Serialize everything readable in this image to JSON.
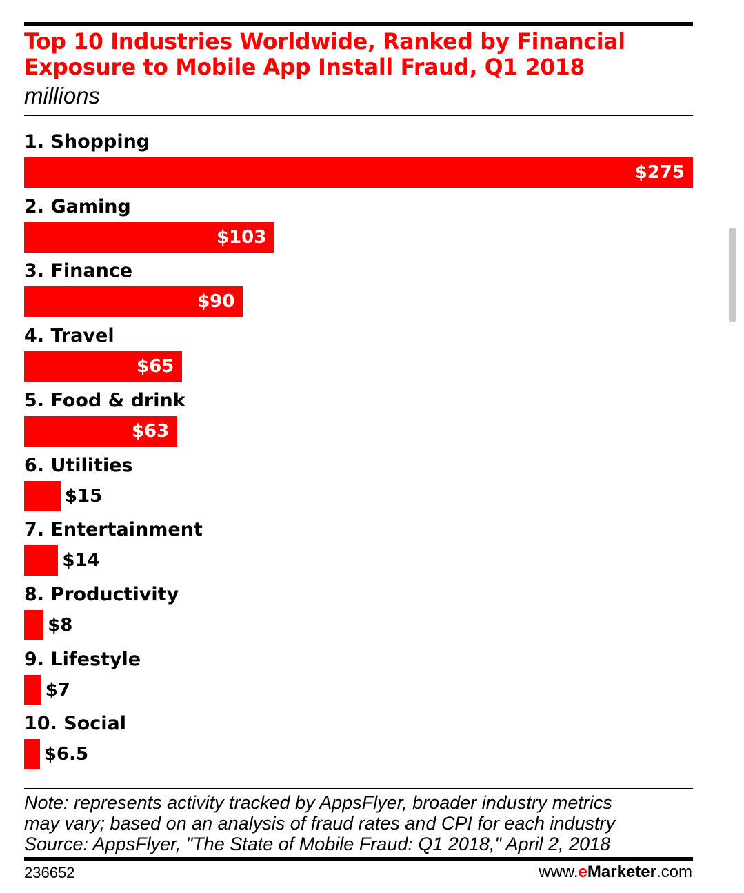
{
  "colors": {
    "accent": "#ff0000",
    "text": "#000000",
    "value_on_bar": "#ffffff"
  },
  "chart_data": {
    "type": "bar",
    "orientation": "horizontal",
    "title": "Top 10 Industries Worldwide, Ranked by Financial Exposure to Mobile App Install Fraud, Q1 2018",
    "subtitle": "millions",
    "categories": [
      "1. Shopping",
      "2. Gaming",
      "3. Finance",
      "4. Travel",
      "5. Food & drink",
      "6. Utilities",
      "7. Entertainment",
      "8. Productivity",
      "9. Lifestyle",
      "10. Social"
    ],
    "values": [
      275,
      103,
      90,
      65,
      63,
      15,
      14,
      8,
      7,
      6.5
    ],
    "value_labels": [
      "$275",
      "$103",
      "$90",
      "$65",
      "$63",
      "$15",
      "$14",
      "$8",
      "$7",
      "$6.5"
    ],
    "xlim": [
      0,
      275
    ],
    "grid": false,
    "xlabel": "",
    "ylabel": ""
  },
  "footer": {
    "note_line1": "Note: represents activity tracked by AppsFlyer, broader industry metrics",
    "note_line2": "may vary; based on an analysis of fraud rates and CPI for each industry",
    "source": "Source: AppsFlyer, \"The State of Mobile Fraud: Q1 2018,\" April 2, 2018",
    "chart_id": "236652",
    "brand_prefix": "www.",
    "brand_e": "e",
    "brand_name": "Marketer",
    "brand_suffix": ".com"
  }
}
